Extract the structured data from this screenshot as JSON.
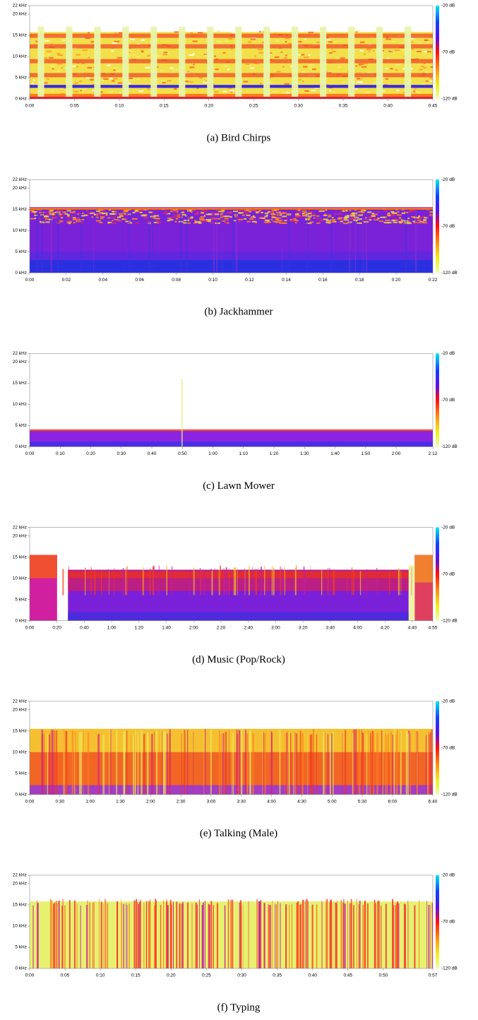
{
  "panels": [
    {
      "caption": "(a) Bird Chirps",
      "y_ticks": [
        "22 kHz",
        "20 kHz",
        "15 kHz",
        "10 kHz",
        "5 kHz",
        "0 kHz"
      ],
      "x_ticks": [
        "0:00",
        "0:05",
        "0:10",
        "0:15",
        "0:20",
        "0:25",
        "0:30",
        "0:35",
        "0:40",
        "0:45"
      ],
      "colorbar": [
        "-20 dB",
        "-70 dB",
        "-120 dB"
      ]
    },
    {
      "caption": "(b) Jackhammer",
      "y_ticks": [
        "22 kHz",
        "20 kHz",
        "15 kHz",
        "10 kHz",
        "5 kHz",
        "0 kHz"
      ],
      "x_ticks": [
        "0:00",
        "0:02",
        "0:04",
        "0:06",
        "0:08",
        "0:10",
        "0:12",
        "0:14",
        "0:16",
        "0:18",
        "0:20",
        "0:22"
      ],
      "colorbar": [
        "-20 dB",
        "-70 dB",
        "-120 dB"
      ]
    },
    {
      "caption": "(c) Lawn Mower",
      "y_ticks": [
        "22 kHz",
        "20 kHz",
        "15 kHz",
        "10 kHz",
        "5 kHz",
        "0 kHz"
      ],
      "x_ticks": [
        "0:00",
        "0:10",
        "0:20",
        "0:30",
        "0:40",
        "0:50",
        "1:00",
        "1:10",
        "1:20",
        "1:30",
        "1:40",
        "1:50",
        "2:00",
        "2:12"
      ],
      "colorbar": [
        "-20 dB",
        "-70 dB",
        "-120 dB"
      ]
    },
    {
      "caption": "(d) Music (Pop/Rock)",
      "y_ticks": [
        "22 kHz",
        "20 kHz",
        "15 kHz",
        "10 kHz",
        "5 kHz",
        "0 kHz"
      ],
      "x_ticks": [
        "0:00",
        "0:20",
        "0:40",
        "1:00",
        "1:20",
        "1:40",
        "2:00",
        "2:20",
        "2:40",
        "3:00",
        "3:20",
        "3:40",
        "4:00",
        "4:20",
        "4:40",
        "4:55"
      ],
      "colorbar": [
        "-20 dB",
        "-70 dB",
        "-120 dB"
      ]
    },
    {
      "caption": "(e) Talking (Male)",
      "y_ticks": [
        "22 kHz",
        "20 kHz",
        "15 kHz",
        "10 kHz",
        "5 kHz",
        "0 kHz"
      ],
      "x_ticks": [
        "0:00",
        "0:30",
        "1:00",
        "1:30",
        "2:00",
        "2:30",
        "3:00",
        "3:30",
        "4:00",
        "4:30",
        "5:00",
        "5:30",
        "6:00",
        "6:40"
      ],
      "colorbar": [
        "-20 dB",
        "-70 dB",
        "-120 dB"
      ]
    },
    {
      "caption": "(f) Typing",
      "y_ticks": [
        "22 kHz",
        "20 kHz",
        "15 kHz",
        "10 kHz",
        "5 kHz",
        "0 kHz"
      ],
      "x_ticks": [
        "0:00",
        "0:05",
        "0:10",
        "0:15",
        "0:20",
        "0:25",
        "0:30",
        "0:35",
        "0:40",
        "0:45",
        "0:50",
        "0:57"
      ],
      "colorbar": [
        "-20 dB",
        "-70 dB",
        "-120 dB"
      ]
    }
  ]
}
